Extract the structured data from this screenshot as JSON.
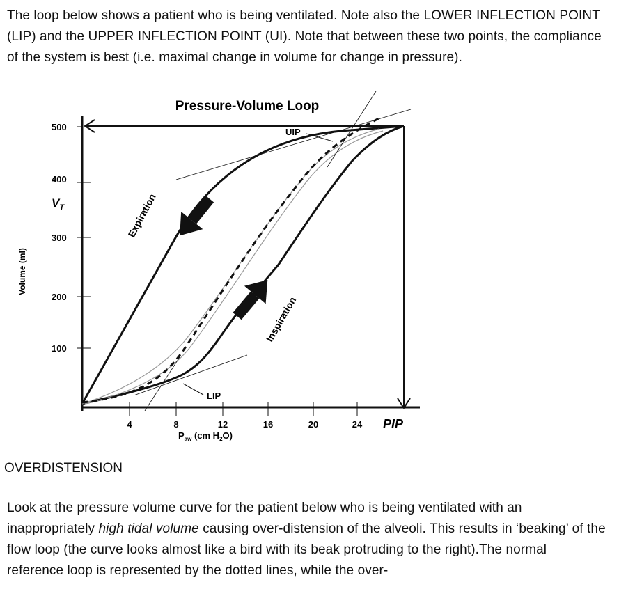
{
  "intro": {
    "text": "The loop below shows a patient who is being ventilated. Note also the LOWER INFLECTION POINT (LIP) and the UPPER INFLECTION POINT (UI). Note that between these two points, the compliance of the system is best (i.e. maximal change in volume for change in pressure)."
  },
  "figure": {
    "title": "Pressure-Volume Loop",
    "y_axis_label": "Volume (ml)",
    "y_symbol": "V",
    "y_symbol_sub": "T",
    "y_ticks": [
      "500",
      "400",
      "300",
      "200",
      "100"
    ],
    "x_ticks": [
      "4",
      "8",
      "12",
      "16",
      "20",
      "24"
    ],
    "x_axis_label_main": "P",
    "x_axis_label_sub": "aw",
    "x_axis_label_rest": " (cm H",
    "x_axis_label_sub2": "2",
    "x_axis_label_end": "O)",
    "pip_label": "PIP",
    "uip_label": "UIP",
    "lip_label": "LIP",
    "expiration_label": "Expiration",
    "inspiration_label": "Inspiration",
    "colors": {
      "ink": "#111111",
      "reference": "#9a9a9a"
    }
  },
  "section": {
    "heading": "OVERDISTENSION"
  },
  "body2": {
    "part1": "Look at the pressure volume curve for the patient below who is being ventilated with an inappropriately ",
    "emph": "high tidal volume",
    "part2": " causing over-distension of the alveoli. This results in ‘beaking’ of the flow loop (the curve looks almost like a bird with its beak protruding to the right).The normal reference loop is represented by the dotted lines, while the over-"
  }
}
